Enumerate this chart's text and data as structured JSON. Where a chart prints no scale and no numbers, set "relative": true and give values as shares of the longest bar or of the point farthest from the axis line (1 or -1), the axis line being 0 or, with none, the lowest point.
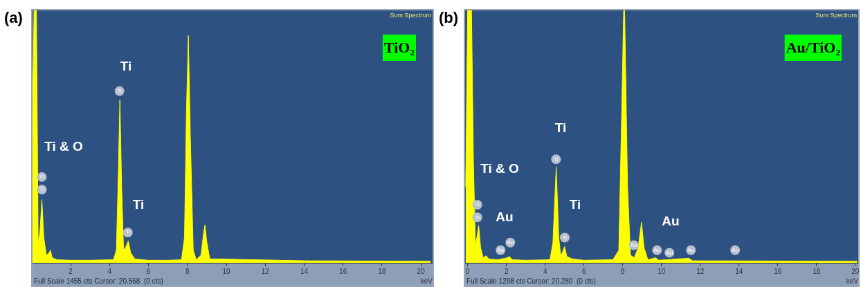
{
  "chart_data": [
    {
      "type": "area",
      "title": "(a)",
      "xlabel": "keV",
      "relative": true,
      "color": "#ffff00",
      "xlim": [
        0.04,
        20.6
      ],
      "xticks": [
        2,
        4,
        6,
        8,
        10,
        12,
        14,
        16,
        18,
        20
      ],
      "x": [
        0.04,
        0.12,
        0.24,
        0.33,
        0.42,
        0.52,
        0.62,
        0.75,
        0.9,
        0.96,
        1.05,
        1.3,
        2,
        3,
        4.2,
        4.35,
        4.45,
        4.53,
        4.62,
        4.72,
        4.82,
        4.96,
        5.08,
        5.3,
        6,
        7,
        7.7,
        7.85,
        7.95,
        8.05,
        8.15,
        8.3,
        8.45,
        8.7,
        8.82,
        8.9,
        9.0,
        9.15,
        9.7,
        11.5,
        14,
        20.5
      ],
      "values": [
        0.6,
        1,
        1,
        0.08,
        0.12,
        0.25,
        0.1,
        0.03,
        0.04,
        0.05,
        0.02,
        0.012,
        0.01,
        0.01,
        0.012,
        0.05,
        0.35,
        0.645,
        0.3,
        0.05,
        0.06,
        0.086,
        0.04,
        0.015,
        0.01,
        0.01,
        0.012,
        0.1,
        0.6,
        0.9,
        0.5,
        0.05,
        0.012,
        0.03,
        0.11,
        0.15,
        0.08,
        0.015,
        0.015,
        0.012,
        0.008,
        0.006
      ],
      "annotations": [
        "Sum Spectrum",
        "TiO₂",
        "Full Scale 1455 cts Cursor: 20.568  (0 cts)",
        "Ti & O",
        "Ti",
        "Ti",
        {
          "text": "O",
          "x": 0.52,
          "y": 0.34
        },
        {
          "text": "Ti",
          "x": 0.52,
          "y": 0.29
        },
        {
          "text": "Ti",
          "x": 4.51,
          "y": 0.68
        },
        {
          "text": "Ti",
          "x": 4.94,
          "y": 0.12
        }
      ]
    },
    {
      "type": "area",
      "title": "(b)",
      "xlabel": "keV",
      "relative": true,
      "color": "#ffff00",
      "xlim": [
        -0.13,
        20.15
      ],
      "xticks": [
        0,
        2,
        4,
        6,
        8,
        10,
        12,
        14,
        16,
        18,
        20
      ],
      "x": [
        -0.1,
        0.0,
        0.2,
        0.3,
        0.4,
        0.48,
        0.57,
        0.67,
        0.8,
        0.95,
        1.1,
        1.5,
        1.7,
        2.05,
        2.15,
        2.3,
        3,
        4.25,
        4.4,
        4.57,
        4.7,
        4.8,
        4.88,
        5.0,
        5.12,
        5.4,
        6,
        7.5,
        7.8,
        7.95,
        8.05,
        8.1,
        8.25,
        8.4,
        8.6,
        8.8,
        8.97,
        9.1,
        9.3,
        9.7,
        9.85,
        11.4,
        11.6,
        20.1
      ],
      "values": [
        0.3,
        1,
        1,
        0.4,
        0.07,
        0.1,
        0.147,
        0.06,
        0.02,
        0.028,
        0.015,
        0.012,
        0.014,
        0.02,
        0.025,
        0.012,
        0.01,
        0.012,
        0.08,
        0.38,
        0.1,
        0.03,
        0.04,
        0.064,
        0.025,
        0.015,
        0.01,
        0.012,
        0.05,
        0.6,
        1,
        1,
        0.3,
        0.03,
        0.02,
        0.06,
        0.16,
        0.06,
        0.012,
        0.02,
        0.01,
        0.018,
        0.008,
        0.006
      ],
      "annotations": [
        "Sum Spectrum",
        "Au/TiO₂",
        "Full Scale 1298 cts Cursor: 20.280  (0 cts)",
        "Ti & O",
        "Au",
        "Ti",
        "Ti",
        "Au",
        {
          "text": "O",
          "x": 0.5,
          "y": 0.23
        },
        {
          "text": "Ti",
          "x": 0.5,
          "y": 0.18
        },
        {
          "text": "Au",
          "x": 1.7,
          "y": 0.05
        },
        {
          "text": "Au",
          "x": 2.2,
          "y": 0.08
        },
        {
          "text": "Ti",
          "x": 4.56,
          "y": 0.41
        },
        {
          "text": "Ti",
          "x": 5.01,
          "y": 0.1
        },
        {
          "text": "Au",
          "x": 8.57,
          "y": 0.07
        },
        {
          "text": "Au",
          "x": 9.77,
          "y": 0.05
        },
        {
          "text": "Au",
          "x": 10.41,
          "y": 0.04
        },
        {
          "text": "Au",
          "x": 11.52,
          "y": 0.05
        },
        {
          "text": "Au",
          "x": 13.8,
          "y": 0.05
        }
      ]
    }
  ]
}
